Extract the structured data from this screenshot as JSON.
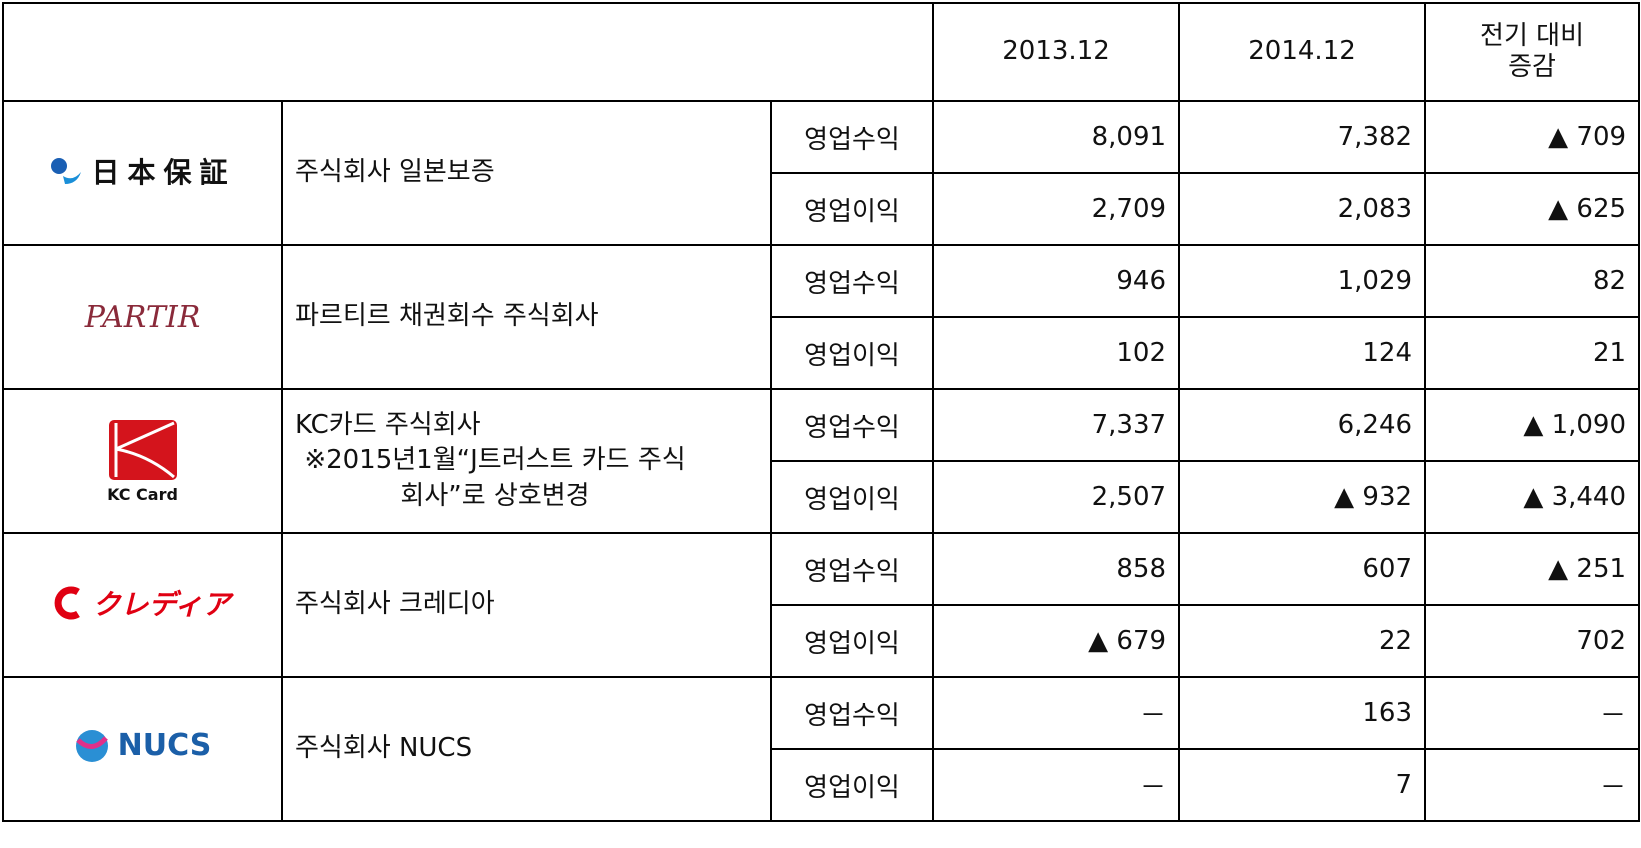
{
  "table": {
    "header": [
      "2013.12",
      "2014.12",
      "전기 대비 증감"
    ],
    "companies": [
      {
        "logo": "日本保証",
        "name": "주식회사 일본보증",
        "rows": [
          [
            "영업수익",
            "8,091",
            "7,382",
            "▲ 709"
          ],
          [
            "영업이익",
            "2,709",
            "2,083",
            "▲ 625"
          ]
        ]
      },
      {
        "logo": "PARTIR",
        "name": "파르티르 채권회수 주식회사",
        "rows": [
          [
            "영업수익",
            "946",
            "1,029",
            "82"
          ],
          [
            "영업이익",
            "102",
            "124",
            "21"
          ]
        ]
      },
      {
        "logo": "KC Card",
        "name": "KC카드 주식회사",
        "note": "※2015년1월“J트러스트 카드 주식회사”로 상호변경",
        "rows": [
          [
            "영업수익",
            "7,337",
            "6,246",
            "▲ 1,090"
          ],
          [
            "영업이익",
            "2,507",
            "▲ 932",
            "▲ 3,440"
          ]
        ]
      },
      {
        "logo": "クレディア",
        "name": "주식회사 크레디아",
        "rows": [
          [
            "영업수익",
            "858",
            "607",
            "▲ 251"
          ],
          [
            "영업이익",
            "▲ 679",
            "22",
            "702"
          ]
        ]
      },
      {
        "logo": "NUCS",
        "name": "주식회사 NUCS",
        "rows": [
          [
            "영업수익",
            "－",
            "163",
            "－"
          ],
          [
            "영업이익",
            "－",
            "7",
            "－"
          ]
        ]
      }
    ]
  }
}
